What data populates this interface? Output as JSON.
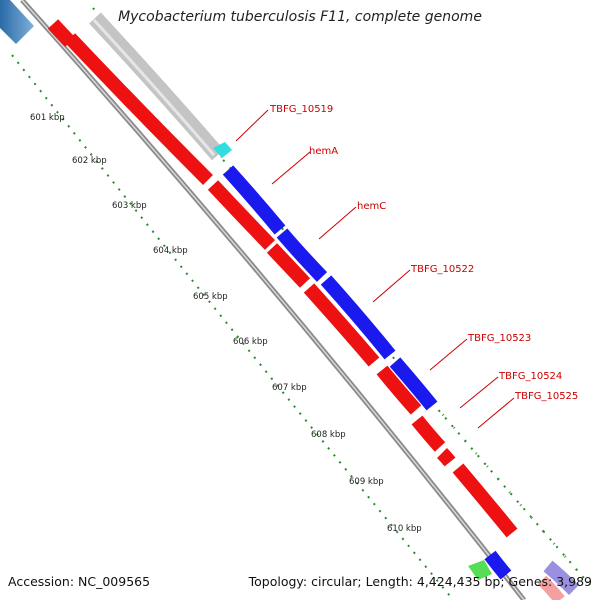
{
  "title": "Mycobacterium tuberculosis F11, complete genome",
  "accession": "Accession: NC_009565",
  "summary": "Topology: circular; Length: 4,424,435 bp; Genes: 3,989",
  "ticks": [
    "601 kbp",
    "602 kbp",
    "603 kbp",
    "604 kbp",
    "605 kbp",
    "606 kbp",
    "607 kbp",
    "608 kbp",
    "609 kbp",
    "610 kbp"
  ],
  "gene_labels": [
    "TBFG_10519",
    "hemA",
    "hemC",
    "TBFG_10522",
    "TBFG_10523",
    "TBFG_10524",
    "TBFG_10525"
  ],
  "colors": {
    "forward_gene": "#1a1aee",
    "reverse_gene": "#ee1111",
    "grey_feature": "#c4c4c4",
    "tick_dots": "#2a8a2a",
    "label_text": "#cc0000",
    "backbone": "#888888"
  }
}
